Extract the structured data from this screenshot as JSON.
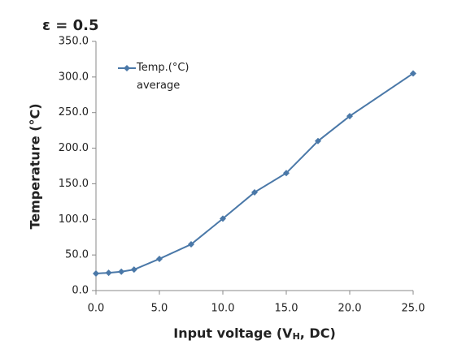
{
  "chart_data": {
    "type": "line",
    "title": "ε = 0.5",
    "xlabel": [
      "Input voltage (V",
      "H",
      ", DC)"
    ],
    "ylabel": "Temperature (°C)",
    "x": [
      0,
      1,
      2,
      3,
      5,
      7.5,
      10,
      12.5,
      15,
      17.5,
      20,
      25
    ],
    "series": [
      {
        "name": "Temp.(°C) average",
        "color": "#4a78a8",
        "values": [
          24,
          25,
          26.5,
          29.5,
          44.5,
          65,
          101,
          138,
          165,
          210,
          245,
          305
        ]
      }
    ],
    "xlim": [
      0,
      25
    ],
    "xticks": [
      {
        "value": 0,
        "label": "0.0"
      },
      {
        "value": 5,
        "label": "5.0"
      },
      {
        "value": 10,
        "label": "10.0"
      },
      {
        "value": 15,
        "label": "15.0"
      },
      {
        "value": 20,
        "label": "20.0"
      },
      {
        "value": 25,
        "label": "25.0"
      }
    ],
    "ylim": [
      0,
      350
    ],
    "yticks": [
      {
        "value": 0,
        "label": "0.0"
      },
      {
        "value": 50,
        "label": "50.0"
      },
      {
        "value": 100,
        "label": "100.0"
      },
      {
        "value": 150,
        "label": "150.0"
      },
      {
        "value": 200,
        "label": "200.0"
      },
      {
        "value": 250,
        "label": "250.0"
      },
      {
        "value": 300,
        "label": "300.0"
      },
      {
        "value": 350,
        "label": "350.0"
      }
    ],
    "grid": false,
    "legend": "top-left"
  }
}
